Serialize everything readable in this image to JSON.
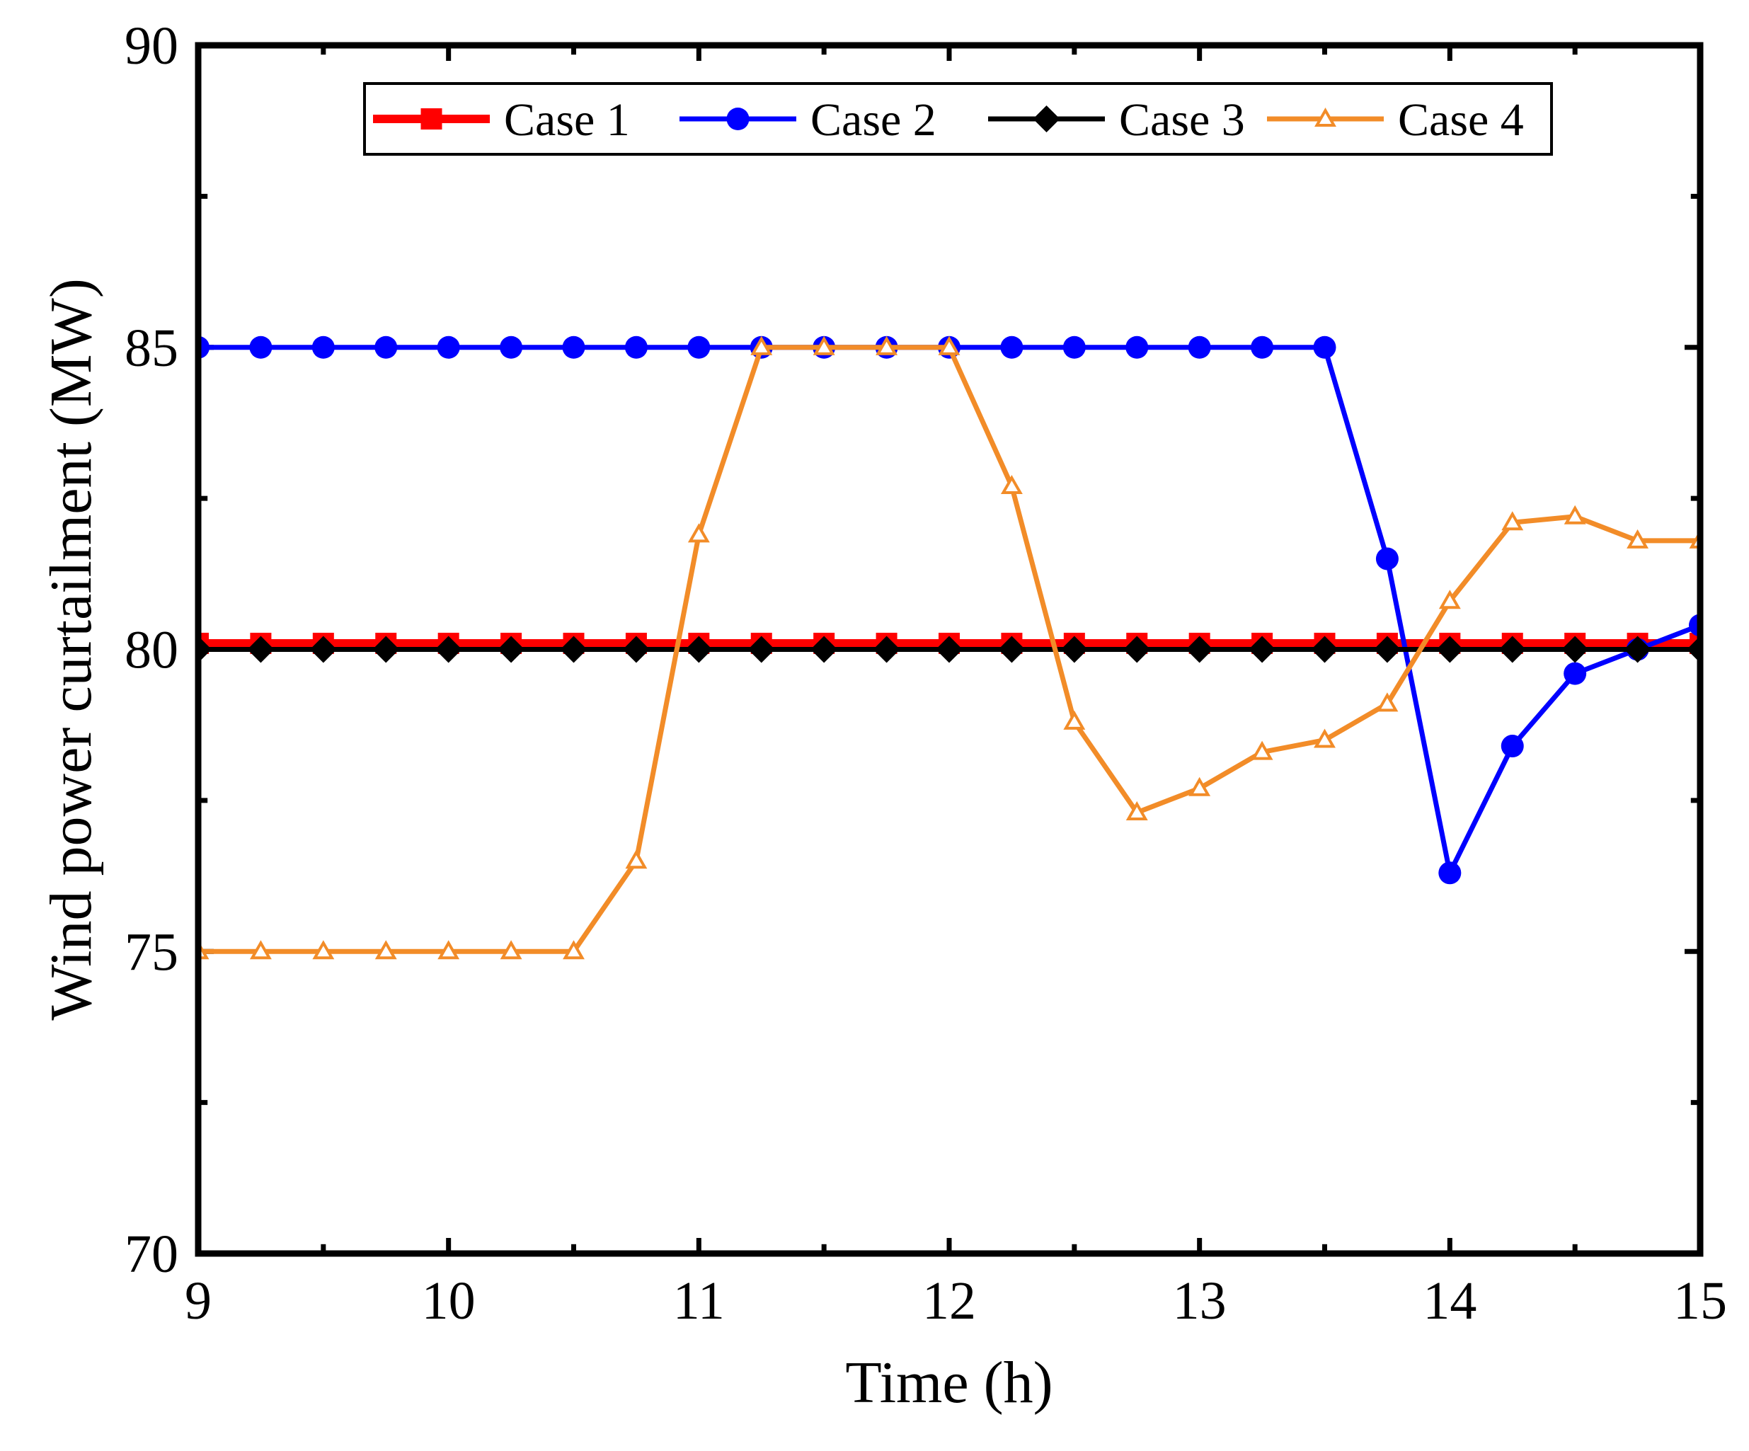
{
  "chart_data": {
    "type": "line",
    "title": "",
    "xlabel": "Time (h)",
    "ylabel": "Wind power curtailment (MW)",
    "xlim": [
      9,
      15
    ],
    "ylim": [
      70,
      90
    ],
    "x_ticks": [
      9,
      10,
      11,
      12,
      13,
      14,
      15
    ],
    "y_ticks": [
      70,
      75,
      80,
      85,
      90
    ],
    "grid": false,
    "legend_position": "top",
    "x": [
      9,
      9.25,
      9.5,
      9.75,
      10,
      10.25,
      10.5,
      10.75,
      11,
      11.25,
      11.5,
      11.75,
      12,
      12.25,
      12.5,
      12.75,
      13,
      13.25,
      13.5,
      13.75,
      14,
      14.25,
      14.5,
      14.75,
      15
    ],
    "series": [
      {
        "name": "Case 1",
        "color": "#ff0000",
        "marker": "square",
        "values": [
          80.1,
          80.1,
          80.1,
          80.1,
          80.1,
          80.1,
          80.1,
          80.1,
          80.1,
          80.1,
          80.1,
          80.1,
          80.1,
          80.1,
          80.1,
          80.1,
          80.1,
          80.1,
          80.1,
          80.1,
          80.1,
          80.1,
          80.1,
          80.1,
          80.1
        ]
      },
      {
        "name": "Case 2",
        "color": "#0000ff",
        "marker": "circle",
        "values": [
          85,
          85,
          85,
          85,
          85,
          85,
          85,
          85,
          85,
          85,
          85,
          85,
          85,
          85,
          85,
          85,
          85,
          85,
          85,
          81.5,
          76.3,
          78.4,
          79.6,
          80,
          80.4
        ]
      },
      {
        "name": "Case 3",
        "color": "#000000",
        "marker": "diamond",
        "values": [
          80,
          80,
          80,
          80,
          80,
          80,
          80,
          80,
          80,
          80,
          80,
          80,
          80,
          80,
          80,
          80,
          80,
          80,
          80,
          80,
          80,
          80,
          80,
          80,
          80
        ]
      },
      {
        "name": "Case 4",
        "color": "#f28c28",
        "marker": "triangle-open",
        "values": [
          75,
          75,
          75,
          75,
          75,
          75,
          75,
          76.5,
          81.9,
          85,
          85,
          85,
          85,
          82.7,
          78.8,
          77.3,
          77.7,
          78.3,
          78.5,
          79.1,
          80.8,
          82.1,
          82.2,
          81.8,
          81.8
        ]
      }
    ]
  }
}
